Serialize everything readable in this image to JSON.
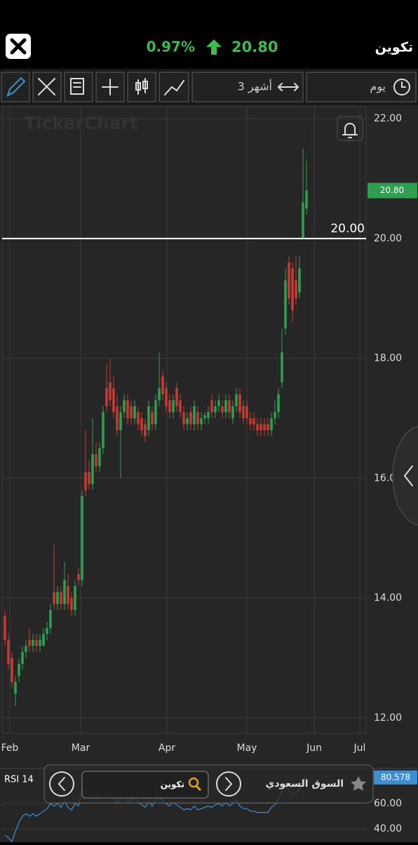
{
  "header": {
    "change": "0.97%",
    "price": "20.80",
    "symbol": "تكوين"
  },
  "toolbar": {
    "period": "3 أشهر",
    "interval": "يوم"
  },
  "watermark": "TickerChart",
  "overlay": {
    "search": "تكوين",
    "market": "السوق السعودي"
  },
  "chart_data": [
    {
      "type": "candlestick",
      "up_color": "#2e9e4f",
      "down_color": "#c43b35",
      "grid": true,
      "x": [
        0,
        1,
        2,
        3,
        4,
        5,
        6,
        7,
        8,
        9,
        10,
        11,
        12,
        13,
        14,
        15,
        16,
        17,
        18,
        19,
        20,
        21,
        22,
        23,
        24,
        25,
        26,
        27,
        28,
        29,
        30,
        31,
        32,
        33,
        34,
        35,
        36,
        37,
        38,
        39,
        40,
        41,
        42,
        43,
        44,
        45,
        46,
        47,
        48,
        49,
        50,
        51,
        52,
        53,
        54,
        55,
        56,
        57,
        58,
        59,
        60,
        61,
        62,
        63,
        64,
        65,
        66,
        67,
        68,
        69,
        70,
        71,
        72,
        73,
        74,
        75,
        76,
        77,
        78,
        79,
        80,
        81,
        82,
        83,
        84,
        85,
        86
      ],
      "open": [
        13.7,
        13.3,
        13.0,
        12.4,
        12.7,
        12.9,
        13.1,
        13.3,
        13.2,
        13.3,
        13.2,
        13.2,
        13.4,
        13.5,
        14.1,
        13.9,
        14.1,
        13.9,
        14.2,
        14.0,
        13.8,
        14.4,
        14.3,
        16.1,
        16.1,
        15.9,
        16.4,
        16.2,
        16.5,
        17.5,
        17.6,
        17.5,
        17.2,
        16.8,
        17.1,
        17.3,
        17.2,
        17.0,
        17.1,
        17.0,
        16.9,
        16.8,
        17.1,
        16.9,
        17.3,
        17.7,
        17.5,
        17.3,
        17.1,
        17.5,
        17.3,
        17.1,
        16.9,
        17.1,
        16.9,
        17.1,
        16.9,
        17.0,
        17.0,
        17.3,
        17.1,
        17.2,
        17.2,
        17.1,
        17.3,
        17.0,
        17.2,
        17.4,
        17.2,
        17.2,
        17.0,
        17.0,
        16.9,
        16.9,
        16.9,
        16.9,
        16.8,
        17.0,
        17.1,
        17.6,
        18.5,
        19.6,
        19.5,
        19.3,
        19.1,
        20.0,
        20.5
      ],
      "high": [
        13.8,
        13.4,
        13.1,
        12.7,
        13.0,
        13.2,
        13.3,
        13.5,
        13.4,
        13.4,
        13.4,
        13.5,
        13.6,
        13.9,
        14.9,
        14.2,
        14.2,
        14.6,
        14.4,
        14.1,
        14.3,
        14.5,
        15.8,
        16.8,
        16.3,
        17.0,
        16.6,
        16.6,
        17.2,
        17.9,
        18.0,
        17.7,
        17.4,
        17.2,
        17.4,
        17.4,
        17.3,
        17.3,
        17.2,
        17.1,
        17.0,
        17.3,
        17.2,
        17.4,
        18.1,
        17.8,
        17.6,
        17.4,
        17.4,
        17.6,
        17.4,
        17.2,
        17.1,
        17.2,
        17.3,
        17.2,
        17.1,
        17.1,
        17.2,
        17.4,
        17.3,
        17.4,
        17.3,
        17.4,
        17.4,
        17.3,
        17.5,
        17.5,
        17.3,
        17.3,
        17.1,
        17.1,
        17.0,
        17.0,
        17.0,
        17.0,
        17.1,
        17.3,
        17.5,
        18.5,
        19.5,
        19.7,
        19.6,
        19.7,
        19.7,
        21.5,
        21.3
      ],
      "low": [
        13.2,
        12.8,
        12.5,
        12.2,
        12.6,
        12.8,
        13.0,
        13.1,
        13.1,
        13.1,
        13.1,
        13.2,
        13.3,
        13.4,
        13.8,
        13.8,
        13.8,
        13.8,
        13.8,
        13.7,
        13.7,
        14.2,
        14.2,
        15.7,
        15.8,
        15.8,
        16.1,
        16.1,
        16.4,
        17.1,
        17.2,
        17.0,
        16.7,
        16.0,
        17.0,
        16.9,
        16.9,
        16.9,
        16.8,
        16.7,
        16.6,
        16.7,
        16.8,
        16.8,
        17.2,
        17.3,
        17.1,
        17.0,
        17.0,
        17.1,
        17.0,
        16.8,
        16.8,
        16.8,
        16.8,
        16.8,
        16.8,
        16.9,
        16.9,
        17.0,
        17.0,
        17.1,
        17.0,
        17.0,
        17.0,
        16.9,
        17.1,
        17.0,
        16.9,
        16.9,
        16.8,
        16.8,
        16.7,
        16.7,
        16.7,
        16.7,
        16.7,
        16.9,
        17.0,
        17.5,
        18.4,
        18.9,
        18.6,
        18.9,
        19.0,
        20.0,
        20.4
      ],
      "close": [
        13.3,
        12.9,
        12.6,
        12.6,
        12.9,
        13.1,
        13.2,
        13.2,
        13.3,
        13.2,
        13.3,
        13.4,
        13.5,
        13.8,
        13.9,
        14.1,
        13.9,
        14.3,
        13.9,
        13.8,
        14.2,
        14.3,
        15.7,
        15.8,
        15.9,
        16.4,
        16.2,
        16.5,
        17.1,
        17.2,
        17.3,
        17.1,
        16.8,
        17.1,
        17.3,
        17.0,
        17.0,
        17.2,
        16.9,
        16.8,
        16.7,
        17.2,
        16.9,
        17.3,
        17.5,
        17.4,
        17.2,
        17.1,
        17.3,
        17.2,
        17.1,
        16.9,
        17.0,
        16.9,
        17.2,
        16.9,
        17.0,
        17.05,
        17.1,
        17.1,
        17.2,
        17.3,
        17.1,
        17.3,
        17.1,
        17.2,
        17.4,
        17.1,
        17.0,
        17.0,
        16.9,
        16.9,
        16.8,
        16.8,
        16.8,
        16.8,
        17.0,
        17.1,
        17.4,
        18.1,
        19.3,
        19.0,
        18.8,
        19.0,
        19.5,
        20.6,
        20.8
      ],
      "xlim": [
        -0.8,
        103
      ],
      "xticks": [
        {
          "value": 1.4,
          "label": "Feb"
        },
        {
          "value": 21.6,
          "label": "Mar"
        },
        {
          "value": 46.2,
          "label": "Apr"
        },
        {
          "value": 69,
          "label": "May"
        },
        {
          "value": 88.2,
          "label": "Jun"
        },
        {
          "value": 101.2,
          "label": "Jul"
        }
      ],
      "ylim": [
        11.74,
        22.2
      ],
      "yticks": [
        {
          "value": 12,
          "label": "12.00"
        },
        {
          "value": 14,
          "label": "14.00"
        },
        {
          "value": 16,
          "label": "16.00"
        },
        {
          "value": 18,
          "label": "18.00"
        },
        {
          "value": 20,
          "label": "20.00"
        },
        {
          "value": 22,
          "label": "22.00"
        }
      ],
      "hline": {
        "value": 20,
        "label": "20.00"
      },
      "last_price": {
        "value": 20.8,
        "label": "20.80"
      }
    },
    {
      "type": "line",
      "title": "RSI 14",
      "color": "#3d8fd1",
      "values": [
        35,
        33,
        30,
        38,
        45,
        50,
        52,
        50,
        52,
        50,
        52,
        54,
        56,
        60,
        58,
        60,
        57,
        62,
        57,
        55,
        60,
        58,
        72,
        68,
        66,
        70,
        66,
        68,
        72,
        68,
        66,
        65,
        60,
        64,
        66,
        62,
        63,
        65,
        61,
        59,
        57,
        62,
        58,
        63,
        66,
        62,
        60,
        58,
        61,
        59,
        57,
        55,
        56,
        55,
        58,
        55,
        56,
        57,
        58,
        57,
        59,
        60,
        58,
        61,
        58,
        60,
        63,
        58,
        56,
        56,
        54,
        54,
        53,
        53,
        53,
        53,
        57,
        59,
        63,
        70,
        76,
        70,
        67,
        68,
        71,
        79,
        80.578
      ],
      "ylim": [
        30.6,
        86
      ],
      "yticks": [
        {
          "value": 60,
          "label": "60.00"
        },
        {
          "value": 40,
          "label": "40.00"
        }
      ],
      "last_value": {
        "value": 80.578,
        "label": "80.578"
      }
    }
  ]
}
